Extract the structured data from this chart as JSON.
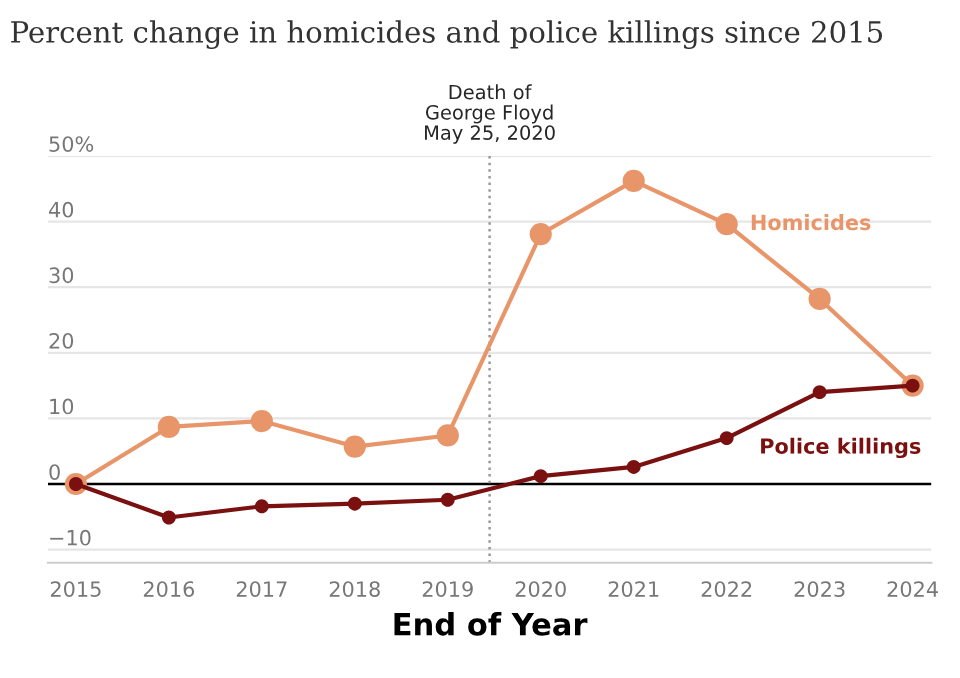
{
  "chart_data": {
    "type": "line",
    "title": "Percent change in homicides and police killings since 2015",
    "xlabel": "End of Year",
    "x": [
      2015,
      2016,
      2017,
      2018,
      2019,
      2020,
      2021,
      2022,
      2023,
      2024
    ],
    "series": [
      {
        "name": "Homicides",
        "color": "#e8956a",
        "values": [
          0,
          8.7,
          9.6,
          5.7,
          7.4,
          38.1,
          46.2,
          39.6,
          28.2,
          15
        ]
      },
      {
        "name": "Police killings",
        "color": "#7a1010",
        "values": [
          0,
          -5.1,
          -3.4,
          -3.0,
          -2.4,
          1.2,
          2.6,
          7.0,
          14.0,
          15.0
        ]
      }
    ],
    "xlim": [
      2014.7,
      2024.2
    ],
    "xticks": [
      2015,
      2016,
      2017,
      2018,
      2019,
      2020,
      2021,
      2022,
      2023,
      2024
    ],
    "ylim": [
      -12,
      50
    ],
    "yticks": [
      {
        "value": -10,
        "label": "−10"
      },
      0,
      10,
      20,
      30,
      40,
      {
        "value": 50,
        "label": "50%"
      }
    ],
    "ref_lines": [
      {
        "axis": "y",
        "value": 0,
        "label": null,
        "color": "#000000",
        "line_style": "solid"
      },
      {
        "axis": "x",
        "value": 2019.45,
        "label": "Death of\nGeorge Floyd\nMay 25, 2020",
        "color": "#999999",
        "line_style": "dotted"
      }
    ],
    "grid": "y",
    "marker": "circle",
    "line_style": "solid",
    "legend": false
  }
}
